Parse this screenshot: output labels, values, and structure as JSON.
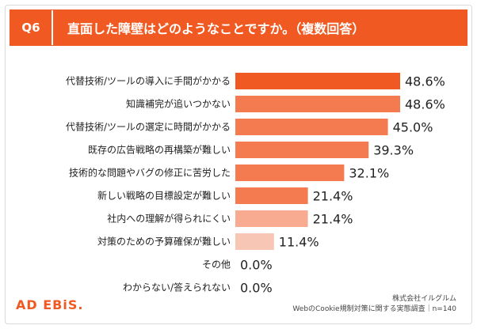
{
  "header": {
    "q_label": "Q6",
    "question": "直面した障壁はどのようなことですか。（複数回答）"
  },
  "logo": {
    "text": "AD EBiS."
  },
  "source": {
    "company": "株式会社イルグルム",
    "survey": "WebのCookie規制対策に関する実態調査｜n=140"
  },
  "colors": {
    "accent": "#f05a22",
    "bars": [
      "#f05a22",
      "#f47a4f",
      "#f47a4f",
      "#f47a4f",
      "#f47a4f",
      "#f47a4f",
      "#f8ab90",
      "#f8c6b4",
      "#bdbdbd",
      "#bdbdbd"
    ]
  },
  "chart_data": {
    "type": "bar",
    "orientation": "horizontal",
    "title": "直面した障壁はどのようなことですか。（複数回答）",
    "categories": [
      "代替技術/ツールの導入に手間がかかる",
      "知識補完が追いつかない",
      "代替技術/ツールの選定に時間がかかる",
      "既存の広告戦略の再構築が難しい",
      "技術的な問題やバグの修正に苦労した",
      "新しい戦略の目標設定が難しい",
      "社内への理解が得られにくい",
      "対策のための予算確保が難しい",
      "その他",
      "わからない/答えられない"
    ],
    "values": [
      48.6,
      48.6,
      45.0,
      39.3,
      32.1,
      21.4,
      21.4,
      11.4,
      0.0,
      0.0
    ],
    "value_labels": [
      "48.6%",
      "48.6%",
      "45.0%",
      "39.3%",
      "32.1%",
      "21.4%",
      "21.4%",
      "11.4%",
      "0.0%",
      "0.0%"
    ],
    "unit": "%",
    "xlim": [
      0,
      50
    ],
    "grid": false,
    "legend": "none"
  }
}
